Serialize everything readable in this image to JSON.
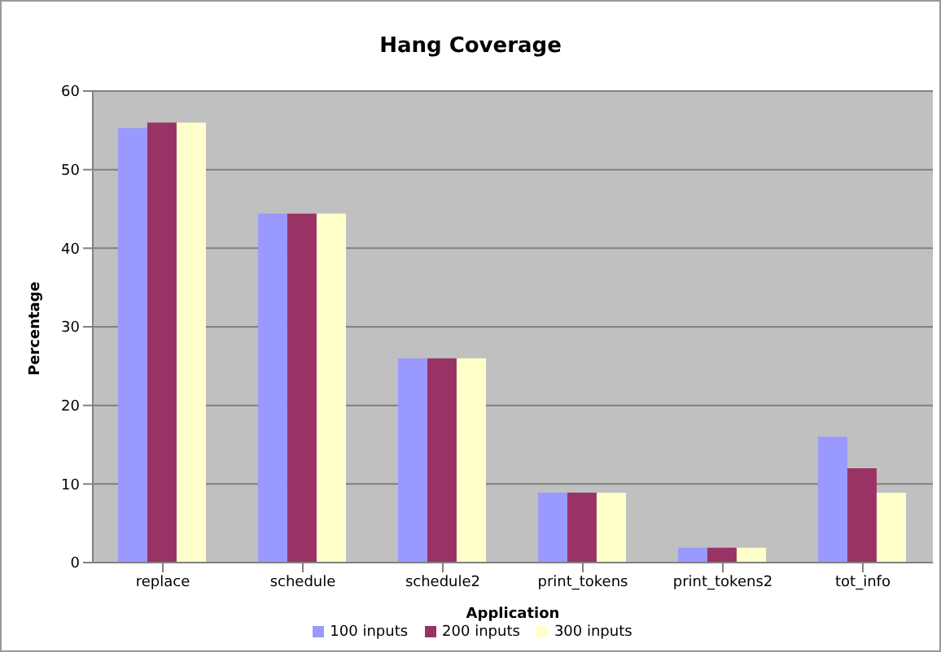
{
  "chart_data": {
    "type": "bar",
    "title": "Hang Coverage",
    "xlabel": "Application",
    "ylabel": "Percentage",
    "categories": [
      "replace",
      "schedule",
      "schedule2",
      "print_tokens",
      "print_tokens2",
      "tot_info"
    ],
    "series": [
      {
        "name": "100 inputs",
        "color": "#9999ff",
        "values": [
          55.3,
          44.4,
          26,
          8.9,
          1.9,
          16
        ]
      },
      {
        "name": "200 inputs",
        "color": "#993366",
        "values": [
          56,
          44.4,
          26,
          8.9,
          1.9,
          12
        ]
      },
      {
        "name": "300 inputs",
        "color": "#ffffcc",
        "values": [
          56,
          44.4,
          26,
          8.9,
          1.9,
          8.9
        ]
      }
    ],
    "ylim": [
      0,
      60
    ],
    "yticks": [
      0,
      10,
      20,
      30,
      40,
      50,
      60
    ],
    "grid": "y",
    "legend": "bottom"
  }
}
